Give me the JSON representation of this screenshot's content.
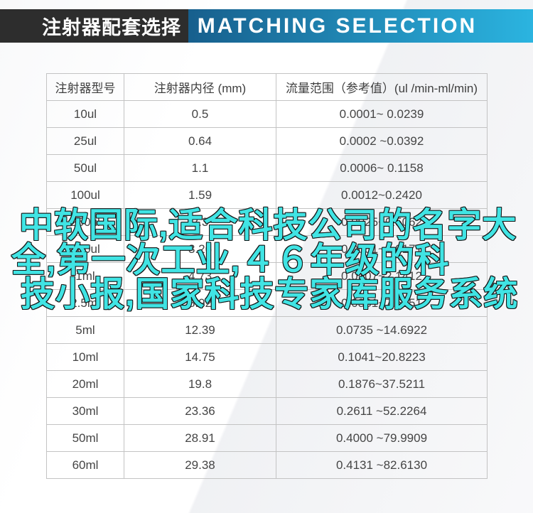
{
  "header": {
    "title_zh": "注射器配套选择",
    "title_en": "MATCHING SELECTION",
    "dark_bg": "#2d2d2d",
    "gradient_start": "#175f8d",
    "gradient_end": "#2bb4e0",
    "text_color": "#ffffff"
  },
  "table": {
    "columns": [
      "注射器型号",
      "注射器内径 (mm)",
      "流量范围（参考值）(ul /min-ml/min)"
    ],
    "rows": [
      [
        "10ul",
        "0.5",
        "0.0001~ 0.0239"
      ],
      [
        "25ul",
        "0.64",
        "0.0002 ~0.0392"
      ],
      [
        "50ul",
        "1.1",
        "0.0006~ 0.1158"
      ],
      [
        "100ul",
        "1.59",
        "0.0012~0.2420"
      ],
      [
        "250ul",
        "2.3",
        "0.0025~0.5062"
      ],
      [
        "500ul",
        "3.26",
        "0.0051~1.0171"
      ],
      [
        "1ml",
        "4.73",
        "0.0107~2.1412"
      ],
      [
        "2.5ml",
        "8.92",
        "0.0381~7.6151"
      ],
      [
        "5ml",
        "12.39",
        "0.0735 ~14.6922"
      ],
      [
        "10ml",
        "14.75",
        "0.1041~20.8223"
      ],
      [
        "20ml",
        "19.8",
        "0.1876~37.5211"
      ],
      [
        "30ml",
        "23.36",
        "0.2611 ~52.2264"
      ],
      [
        "50ml",
        "28.91",
        "0.4000 ~79.9909"
      ],
      [
        "60ml",
        "29.38",
        "0.4131 ~82.6130"
      ]
    ],
    "border_color": "#c3c3c3",
    "text_color": "#454545"
  },
  "watermark": {
    "lines": [
      "中软国际,适合科技公司的名字大",
      "全,第一次工业,４６年级的科",
      "技小报,国家科技专家库服务系统"
    ],
    "full_text": "中软国际,适合科技公司的名字大全,第一次工业,４６年级的科技小报,国家科技专家库服务系统",
    "fill_color": "#40e4e4",
    "outline_color": "#161616"
  }
}
